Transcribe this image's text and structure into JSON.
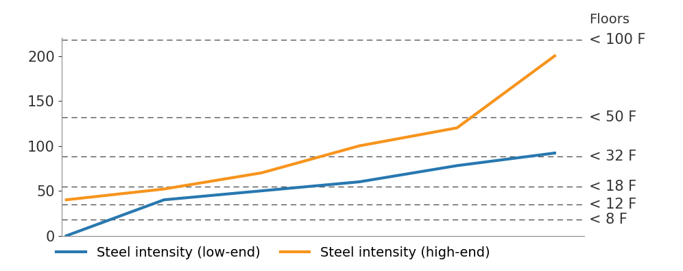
{
  "chart_data": {
    "type": "line",
    "categories": [
      null,
      null,
      null,
      null,
      null,
      null
    ],
    "series": [
      {
        "name": "Steel intensity (low-end)",
        "color": "#2878b0",
        "values": [
          0,
          40,
          50,
          60,
          78,
          92
        ]
      },
      {
        "name": "Steel intensity (high-end)",
        "color": "#f7941d",
        "values": [
          40,
          52,
          70,
          100,
          120,
          200
        ]
      }
    ],
    "ylim": [
      0,
      220
    ],
    "yticks": [
      0,
      50,
      100,
      150,
      200
    ],
    "tick_labels": "y",
    "legend": "lower center",
    "reference_title": "Floors",
    "reference_lines": [
      {
        "value": 218,
        "label": "< 100 F"
      },
      {
        "value": 132,
        "label": "< 50 F"
      },
      {
        "value": 88,
        "label": "< 32 F"
      },
      {
        "value": 55,
        "label": "< 18 F"
      },
      {
        "value": 35,
        "label": "< 12 F"
      },
      {
        "value": 18,
        "label": "< 8 F"
      }
    ]
  }
}
